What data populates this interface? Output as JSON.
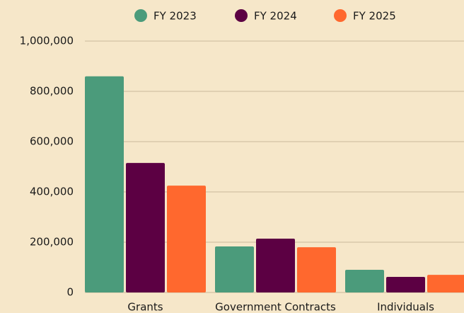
{
  "chart_data": {
    "type": "bar",
    "categories": [
      "Grants",
      "Government Contracts",
      "Individuals"
    ],
    "series": [
      {
        "name": "FY 2023",
        "color": "#4b9b7b",
        "values": [
          860000,
          183000,
          90000
        ]
      },
      {
        "name": "FY 2024",
        "color": "#5c0043",
        "values": [
          515000,
          214000,
          62000
        ]
      },
      {
        "name": "FY 2025",
        "color": "#ff682e",
        "values": [
          425000,
          180000,
          70000
        ]
      }
    ],
    "ylim": [
      0,
      1000000
    ],
    "yticks": [
      0,
      {
        "value": 200000,
        "label": "200,000"
      },
      {
        "value": 400000,
        "label": "400,000"
      },
      {
        "value": 600000,
        "label": "600,000"
      },
      {
        "value": 800000,
        "label": "800,000"
      },
      {
        "value": 1000000,
        "label": "1,000,000"
      }
    ],
    "grid": true,
    "legend": "top"
  }
}
